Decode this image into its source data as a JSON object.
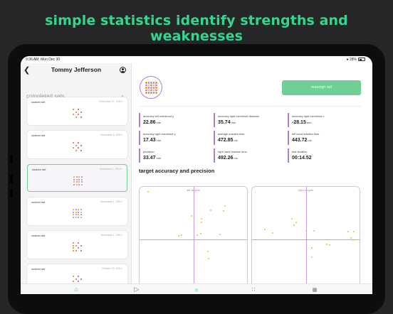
{
  "headline": "simple statistics identify strengths and weaknesses",
  "status": {
    "time": "9:36 AM",
    "date": "Mon Dec 30",
    "battery": "28%"
  },
  "header": {
    "title": "Tommy Jefferson"
  },
  "sidebar": {
    "section_title": "completed sets",
    "sets": [
      {
        "label": "custom set",
        "date": "December 27, 2019 ›"
      },
      {
        "label": "custom set",
        "date": "November 8, 2019 ›"
      },
      {
        "label": "custom set",
        "date": "November 1, 2019 ›"
      },
      {
        "label": "custom set",
        "date": "November 1, 2019 ›"
      },
      {
        "label": "custom set",
        "date": "November 1, 2019 ›"
      },
      {
        "label": "custom set",
        "date": "October 15, 2019 ›"
      }
    ]
  },
  "main": {
    "reassign_label": "reassign set",
    "stats": [
      {
        "label": "accuracy left overshoot y",
        "value": "22.86",
        "unit": "mm"
      },
      {
        "label": "accuracy right overshoot distance",
        "value": "35.74",
        "unit": "mm"
      },
      {
        "label": "accuracy right overshoot x",
        "value": "-28.15",
        "unit": "mm"
      },
      {
        "label": "accuracy right overshoot y",
        "value": "17.43",
        "unit": "mm"
      },
      {
        "label": "average reaction time",
        "value": "472.85",
        "unit": "ms"
      },
      {
        "label": "left hand reaction time",
        "value": "443.72",
        "unit": "ms"
      },
      {
        "label": "precision",
        "value": "33.47",
        "unit": "mm"
      },
      {
        "label": "right hand reaction time",
        "value": "492.26",
        "unit": "ms"
      },
      {
        "label": "trial duration",
        "value": "00:14.52",
        "unit": ""
      }
    ],
    "chart_title": "target accuracy and precision",
    "plots": [
      {
        "title": "left targets"
      },
      {
        "title": "right targets"
      }
    ]
  },
  "tabbar": {
    "active_caption": "sets"
  },
  "colors": {
    "accent": "#35d58f",
    "purple": "#b07ed0",
    "point": "#f2c230"
  }
}
